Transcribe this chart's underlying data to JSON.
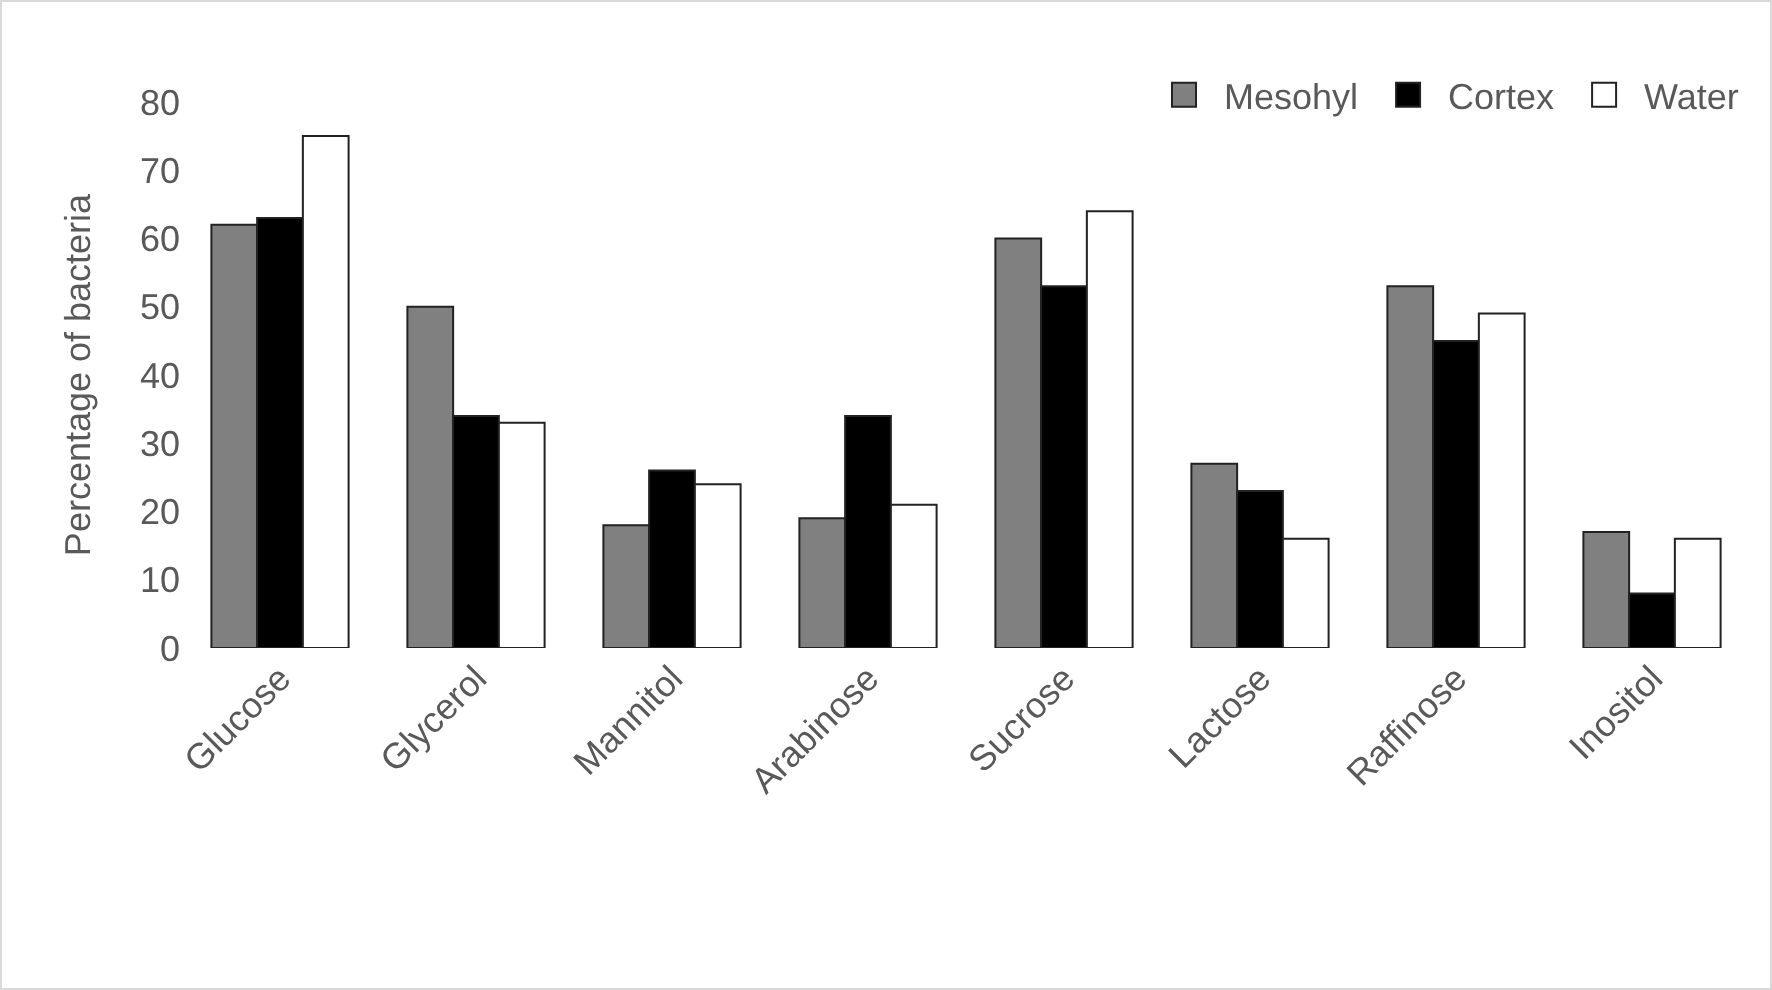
{
  "chart_data": {
    "type": "bar",
    "ylabel": "Percentage of bacteria",
    "categories": [
      "Glucose",
      "Glycerol",
      "Mannitol",
      "Arabinose",
      "Sucrose",
      "Lactose",
      "Raffinose",
      "Inositol"
    ],
    "series": [
      {
        "name": "Mesohyl",
        "color": "#808080",
        "values": [
          62,
          50,
          18,
          19,
          60,
          27,
          53,
          17
        ]
      },
      {
        "name": "Cortex",
        "color": "#000000",
        "values": [
          63,
          34,
          26,
          34,
          53,
          23,
          45,
          8
        ]
      },
      {
        "name": "Water",
        "color": "#ffffff",
        "values": [
          75,
          33,
          24,
          21,
          64,
          16,
          49,
          16
        ]
      }
    ],
    "ylim": [
      0,
      80
    ],
    "yticks": [
      0,
      10,
      20,
      30,
      40,
      50,
      60,
      70,
      80
    ],
    "grid": false,
    "legend": "top right"
  }
}
